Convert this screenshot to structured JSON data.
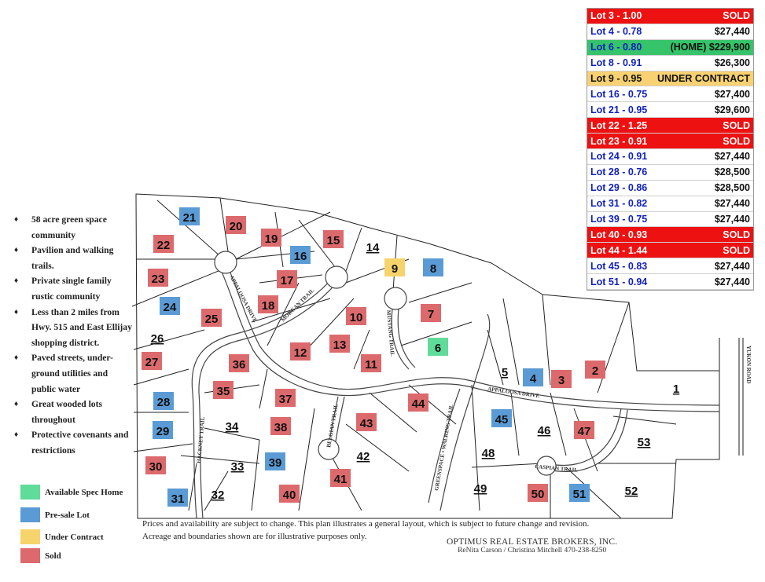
{
  "price_table": [
    {
      "lot": "Lot 3 - 1.00",
      "price": "SOLD",
      "status": "sold"
    },
    {
      "lot": "Lot 4 - 0.78",
      "price": "$27,440",
      "status": "presale"
    },
    {
      "lot": "Lot 6 - 0.80",
      "price": "(HOME) $229,900",
      "status": "spec"
    },
    {
      "lot": "Lot 8 - 0.91",
      "price": "$26,300",
      "status": "presale"
    },
    {
      "lot": "Lot 9 - 0.95",
      "price": "UNDER CONTRACT",
      "status": "contract"
    },
    {
      "lot": "Lot 16 - 0.75",
      "price": "$27,400",
      "status": "presale"
    },
    {
      "lot": "Lot 21 - 0.95",
      "price": "$29,600",
      "status": "presale"
    },
    {
      "lot": "Lot 22 - 1.25",
      "price": "SOLD",
      "status": "sold"
    },
    {
      "lot": "Lot 23 - 0.91",
      "price": "SOLD",
      "status": "sold"
    },
    {
      "lot": "Lot 24 - 0.91",
      "price": "$27,440",
      "status": "presale"
    },
    {
      "lot": "Lot 28 - 0.76",
      "price": "$28,500",
      "status": "presale"
    },
    {
      "lot": "Lot 29 - 0.86",
      "price": "$28,500",
      "status": "presale"
    },
    {
      "lot": "Lot 31 - 0.82",
      "price": "$27,440",
      "status": "presale"
    },
    {
      "lot": "Lot 39 - 0.75",
      "price": "$27,440",
      "status": "presale"
    },
    {
      "lot": "Lot 40 - 0.93",
      "price": "SOLD",
      "status": "sold"
    },
    {
      "lot": "Lot 44 - 1.44",
      "price": "SOLD",
      "status": "sold"
    },
    {
      "lot": "Lot 45 - 0.83",
      "price": "$27,440",
      "status": "presale"
    },
    {
      "lot": "Lot 51 - 0.94",
      "price": "$27,440",
      "status": "presale"
    }
  ],
  "colors": {
    "sold": "#dc6a6d",
    "presale": "#5b9bd5",
    "contract": "#f7d36b",
    "spec": "#5fdb9a",
    "table_red": "#ee1111",
    "table_green": "#35c46a",
    "table_yellow": "#f8d272",
    "table_text_blue": "#0f1fbf"
  },
  "features": [
    {
      "bullet": "♦",
      "text": "58 acre green space community"
    },
    {
      "bullet": "♦",
      "text": "Pavilion and walking trails."
    },
    {
      "bullet": "♦",
      "text": "Private single family rustic community"
    },
    {
      "bullet": "♦",
      "text": "Less than 2 miles from Hwy. 515 and East Ellijay shopping district."
    },
    {
      "bullet": "♦",
      "text": "Paved streets, under-ground utilities and public water"
    },
    {
      "bullet": "♦",
      "text": "Great wooded lots throughout"
    },
    {
      "bullet": "♦",
      "text": "Protective covenants and restrictions"
    }
  ],
  "legend": [
    {
      "label": "Available Spec Home",
      "status": "spec"
    },
    {
      "label": "Pre-sale Lot",
      "status": "presale"
    },
    {
      "label": "Under Contract",
      "status": "contract"
    },
    {
      "label": "Sold",
      "status": "sold"
    }
  ],
  "roads": {
    "appaloosa_1": "APPALOOSA DRIVE",
    "appaloosa_2": "APPALOOSA DRIVE",
    "morgan": "MORGAN TRAIL",
    "mustang": "MUSTANG TRAIL",
    "hackney": "HACKNEY TRAIL",
    "belgian": "BELGIAN TRAIL",
    "caspian": "CASPIAN TRAIL",
    "greenspace": "GREENSPACE • WALKING TRAIL",
    "yukon": "YUKON ROAD"
  },
  "lots": [
    {
      "n": "1",
      "status": "none"
    },
    {
      "n": "2",
      "status": "sold"
    },
    {
      "n": "3",
      "status": "sold"
    },
    {
      "n": "4",
      "status": "presale"
    },
    {
      "n": "5",
      "status": "none"
    },
    {
      "n": "6",
      "status": "spec"
    },
    {
      "n": "7",
      "status": "sold"
    },
    {
      "n": "8",
      "status": "presale"
    },
    {
      "n": "9",
      "status": "contract"
    },
    {
      "n": "10",
      "status": "sold"
    },
    {
      "n": "11",
      "status": "sold"
    },
    {
      "n": "12",
      "status": "sold"
    },
    {
      "n": "13",
      "status": "sold"
    },
    {
      "n": "14",
      "status": "none"
    },
    {
      "n": "15",
      "status": "sold"
    },
    {
      "n": "16",
      "status": "presale"
    },
    {
      "n": "17",
      "status": "sold"
    },
    {
      "n": "18",
      "status": "sold"
    },
    {
      "n": "19",
      "status": "sold"
    },
    {
      "n": "20",
      "status": "sold"
    },
    {
      "n": "21",
      "status": "presale"
    },
    {
      "n": "22",
      "status": "sold"
    },
    {
      "n": "23",
      "status": "sold"
    },
    {
      "n": "24",
      "status": "presale"
    },
    {
      "n": "25",
      "status": "sold"
    },
    {
      "n": "26",
      "status": "none"
    },
    {
      "n": "27",
      "status": "sold"
    },
    {
      "n": "28",
      "status": "presale"
    },
    {
      "n": "29",
      "status": "presale"
    },
    {
      "n": "30",
      "status": "sold"
    },
    {
      "n": "31",
      "status": "presale"
    },
    {
      "n": "32",
      "status": "none"
    },
    {
      "n": "33",
      "status": "none"
    },
    {
      "n": "34",
      "status": "none"
    },
    {
      "n": "35",
      "status": "sold"
    },
    {
      "n": "36",
      "status": "sold"
    },
    {
      "n": "37",
      "status": "sold"
    },
    {
      "n": "38",
      "status": "sold"
    },
    {
      "n": "39",
      "status": "presale"
    },
    {
      "n": "40",
      "status": "sold"
    },
    {
      "n": "41",
      "status": "sold"
    },
    {
      "n": "42",
      "status": "none"
    },
    {
      "n": "43",
      "status": "sold"
    },
    {
      "n": "44",
      "status": "sold"
    },
    {
      "n": "45",
      "status": "presale"
    },
    {
      "n": "46",
      "status": "none"
    },
    {
      "n": "47",
      "status": "sold"
    },
    {
      "n": "48",
      "status": "none"
    },
    {
      "n": "49",
      "status": "none"
    },
    {
      "n": "50",
      "status": "sold"
    },
    {
      "n": "51",
      "status": "presale"
    },
    {
      "n": "52",
      "status": "none"
    },
    {
      "n": "53",
      "status": "none"
    }
  ],
  "disclaimer": {
    "line1": "Prices and availability are subject to change. This plan illustrates a general layout, which is subject to future change and revision.",
    "line2": "Acreage and boundaries shown are for illustrative purposes only."
  },
  "broker": {
    "name": "OPTIMUS REAL ESTATE BROKERS, INC.",
    "agents": "ReNita Carson /  Christina Mitchell 470-238-8250"
  }
}
